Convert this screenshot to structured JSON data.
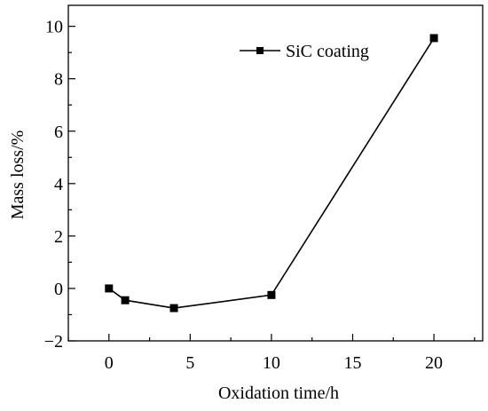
{
  "chart_data": {
    "type": "line",
    "xlabel": "Oxidation time/h",
    "ylabel": "Mass loss/%",
    "xlim": [
      -2.5,
      23
    ],
    "ylim": [
      -2,
      10.8
    ],
    "xticks": [
      0,
      5,
      10,
      15,
      20
    ],
    "yticks": [
      -2,
      0,
      2,
      4,
      6,
      8,
      10
    ],
    "grid": false,
    "legend_position": "top-right",
    "series": [
      {
        "name": "SiC coating",
        "marker": "square",
        "color": "#000000",
        "x": [
          0,
          1,
          4,
          10,
          20
        ],
        "y": [
          0.0,
          -0.45,
          -0.75,
          -0.25,
          9.55
        ]
      }
    ]
  }
}
